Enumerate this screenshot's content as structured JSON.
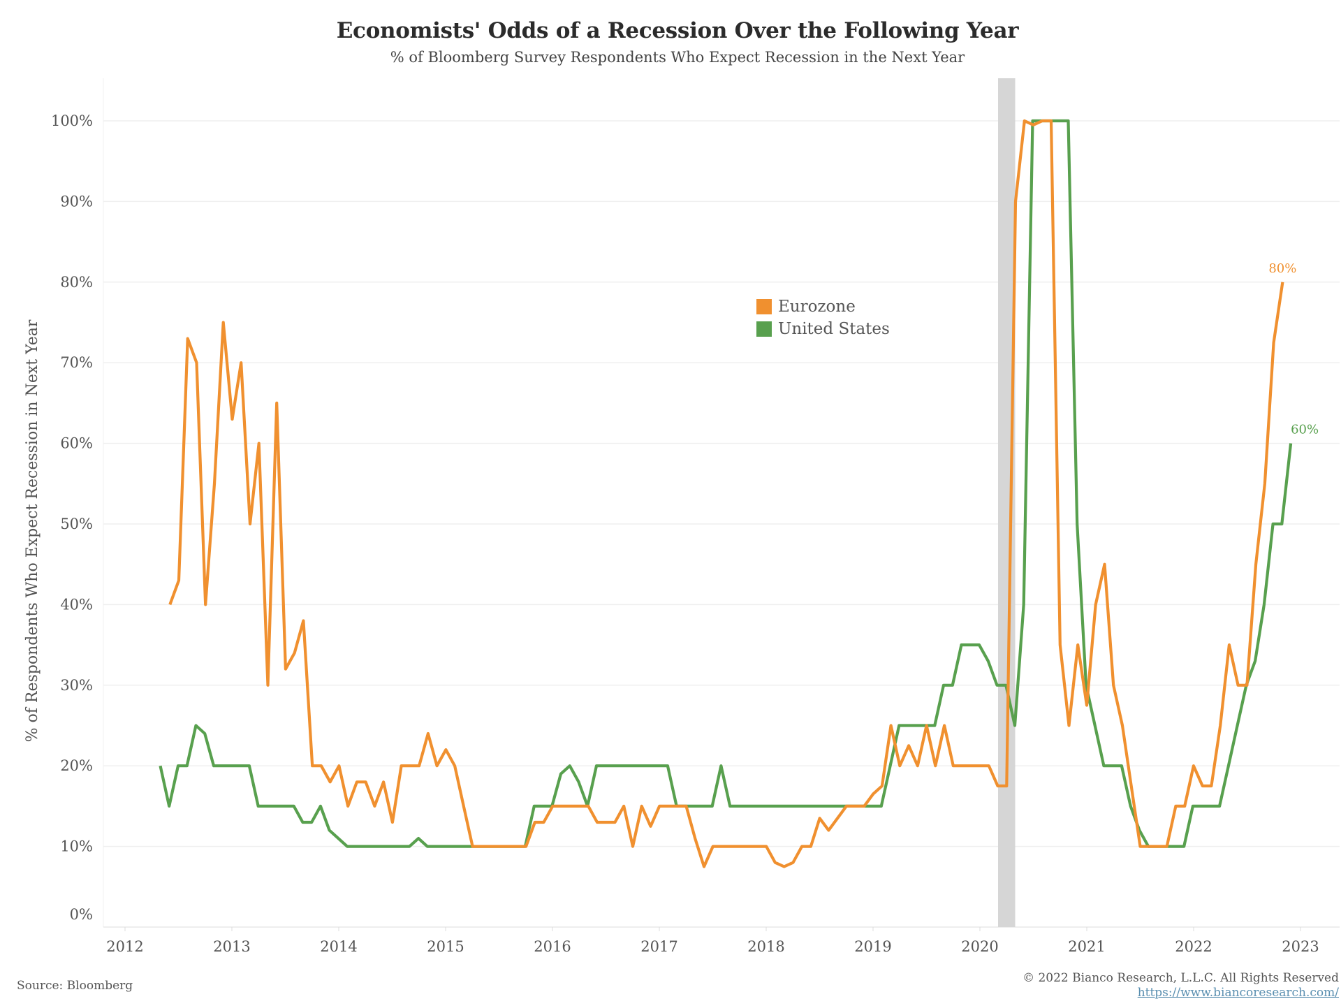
{
  "header": {
    "title": "Economists' Odds of a Recession Over the Following Year",
    "subtitle": "% of Bloomberg Survey Respondents Who Expect Recession in the Next Year"
  },
  "footer": {
    "source": "Source: Bloomberg",
    "copyright": "© 2022 Bianco Research, L.L.C. All Rights Reserved",
    "url": "https://www.biancoresearch.com/"
  },
  "colors": {
    "eurozone": "#f0902f",
    "united_states": "#58a04e",
    "recession_shade": "#d6d6d6",
    "grid": "#efefef"
  },
  "chart_data": {
    "type": "line",
    "title": "Economists' Odds of a Recession Over the Following Year",
    "subtitle": "% of Bloomberg Survey Respondents Who Expect Recession in the Next Year",
    "xlabel": "",
    "ylabel": "% of Respondents Who Expect Recession in Next Year",
    "ylim": [
      0,
      100
    ],
    "xlim": [
      2012,
      2023
    ],
    "y_ticks": [
      "0%",
      "10%",
      "20%",
      "30%",
      "40%",
      "50%",
      "60%",
      "70%",
      "80%",
      "90%",
      "100%"
    ],
    "y_tick_values": [
      0,
      10,
      20,
      30,
      40,
      50,
      60,
      70,
      80,
      90,
      100
    ],
    "x_ticks": [
      "2012",
      "2013",
      "2014",
      "2015",
      "2016",
      "2017",
      "2018",
      "2019",
      "2020",
      "2021",
      "2022",
      "2023"
    ],
    "x_tick_values": [
      2012,
      2013,
      2014,
      2015,
      2016,
      2017,
      2018,
      2019,
      2020,
      2021,
      2022,
      2023
    ],
    "grid": true,
    "legend": {
      "position": "upper-center",
      "entries": [
        "Eurozone",
        "United States"
      ]
    },
    "shaded_regions": [
      {
        "label": "recession",
        "x_start": 2020.17,
        "x_end": 2020.33
      }
    ],
    "end_labels": [
      {
        "series": "Eurozone",
        "text": "80%"
      },
      {
        "series": "United States",
        "text": "60%"
      }
    ],
    "series": [
      {
        "name": "United States",
        "color": "#58a04e",
        "start": 2012.33,
        "step": 0.0833,
        "values": [
          20,
          15,
          20,
          20,
          25,
          24,
          20,
          20,
          20,
          20,
          20,
          15,
          15,
          15,
          15,
          15,
          13,
          13,
          15,
          12,
          11,
          10,
          10,
          10,
          10,
          10,
          10,
          10,
          10,
          11,
          10,
          10,
          10,
          10,
          10,
          10,
          10,
          10,
          10,
          10,
          10,
          10,
          15,
          15,
          15,
          19,
          20,
          18,
          15,
          20,
          20,
          20,
          20,
          20,
          20,
          20,
          20,
          20,
          15,
          15,
          15,
          15,
          15,
          20,
          15,
          15,
          15,
          15,
          15,
          15,
          15,
          15,
          15,
          15,
          15,
          15,
          15,
          15,
          15,
          15,
          15,
          15,
          20,
          25,
          25,
          25,
          25,
          25,
          30,
          30,
          35,
          35,
          35,
          33,
          30,
          30,
          25,
          40,
          100,
          100,
          100,
          100,
          100,
          50,
          30,
          25,
          20,
          20,
          20,
          15,
          12,
          10,
          10,
          10,
          10,
          10,
          15,
          15,
          15,
          15,
          20,
          25,
          30,
          33,
          40,
          50,
          50,
          60
        ]
      },
      {
        "name": "Eurozone",
        "color": "#f0902f",
        "start": 2012.42,
        "step": 0.0833,
        "values": [
          40,
          43,
          73,
          70,
          40,
          55,
          75,
          63,
          70,
          50,
          60,
          30,
          65,
          32,
          34,
          38,
          20,
          20,
          18,
          20,
          15,
          18,
          18,
          15,
          18,
          13,
          20,
          20,
          20,
          24,
          20,
          22,
          20,
          15,
          10,
          10,
          10,
          10,
          10,
          10,
          10,
          13,
          13,
          15,
          15,
          15,
          15,
          15,
          13,
          13,
          13,
          15,
          10,
          15,
          12.5,
          15,
          15,
          15,
          15,
          11,
          7.5,
          10,
          10,
          10,
          10,
          10,
          10,
          10,
          8,
          7.5,
          8,
          10,
          10,
          13.5,
          12,
          13.5,
          15,
          15,
          15,
          16.5,
          17.5,
          25,
          20,
          22.5,
          20,
          25,
          20,
          25,
          20,
          20,
          20,
          20,
          20,
          17.5,
          17.5,
          90,
          100,
          99.5,
          100,
          100,
          35,
          25,
          35,
          27.5,
          40,
          45,
          30,
          25,
          17.5,
          10,
          10,
          10,
          10,
          15,
          15,
          20,
          17.5,
          17.5,
          25,
          35,
          30,
          30,
          45,
          55,
          72.5,
          80
        ]
      }
    ]
  }
}
